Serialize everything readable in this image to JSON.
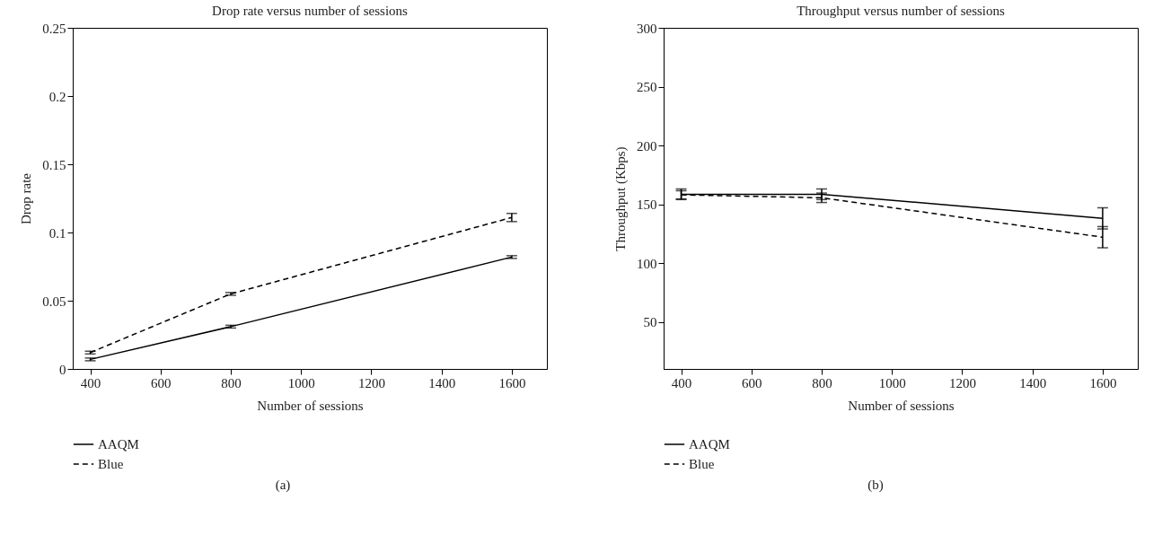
{
  "chart_data": [
    {
      "type": "line",
      "title": "Drop rate versus number of sessions",
      "xlabel": "Number of sessions",
      "ylabel": "Drop rate",
      "x": [
        400,
        800,
        1600
      ],
      "series": [
        {
          "name": "AAQM",
          "color": "#000000",
          "line_style": "solid",
          "values": [
            0.007,
            0.031,
            0.082
          ],
          "errors": [
            0.001,
            0.001,
            0.001
          ]
        },
        {
          "name": "Blue",
          "color": "#000000",
          "line_style": "dashed",
          "values": [
            0.012,
            0.055,
            0.111
          ],
          "errors": [
            0.001,
            0.001,
            0.003
          ]
        }
      ],
      "xlim": [
        350,
        1700
      ],
      "xticks": [
        400,
        600,
        800,
        1000,
        1200,
        1400,
        1600
      ],
      "ylim": [
        0,
        0.25
      ],
      "yticks": [
        0,
        0.05,
        0.1,
        0.15,
        0.2,
        0.25
      ],
      "grid": false,
      "legend": "bottom left",
      "marker": "none",
      "annotations": [
        "(a)"
      ]
    },
    {
      "type": "line",
      "title": "Throughput versus number of sessions",
      "xlabel": "Number of sessions",
      "ylabel": "Throughput (Kbps)",
      "x": [
        400,
        800,
        1600
      ],
      "series": [
        {
          "name": "AAQM",
          "color": "#000000",
          "line_style": "solid",
          "values": [
            158.5,
            158.5,
            138
          ],
          "errors": [
            4.5,
            4.5,
            9
          ]
        },
        {
          "name": "Blue",
          "color": "#000000",
          "line_style": "dashed",
          "values": [
            158,
            155.5,
            122
          ],
          "errors": [
            3.5,
            4,
            9
          ]
        }
      ],
      "xlim": [
        350,
        1700
      ],
      "xticks": [
        400,
        600,
        800,
        1000,
        1200,
        1400,
        1600
      ],
      "ylim": [
        10,
        300
      ],
      "yticks": [
        50,
        100,
        150,
        200,
        250,
        300
      ],
      "grid": false,
      "legend": "bottom left",
      "marker": "none",
      "annotations": [
        "(b)"
      ]
    }
  ]
}
